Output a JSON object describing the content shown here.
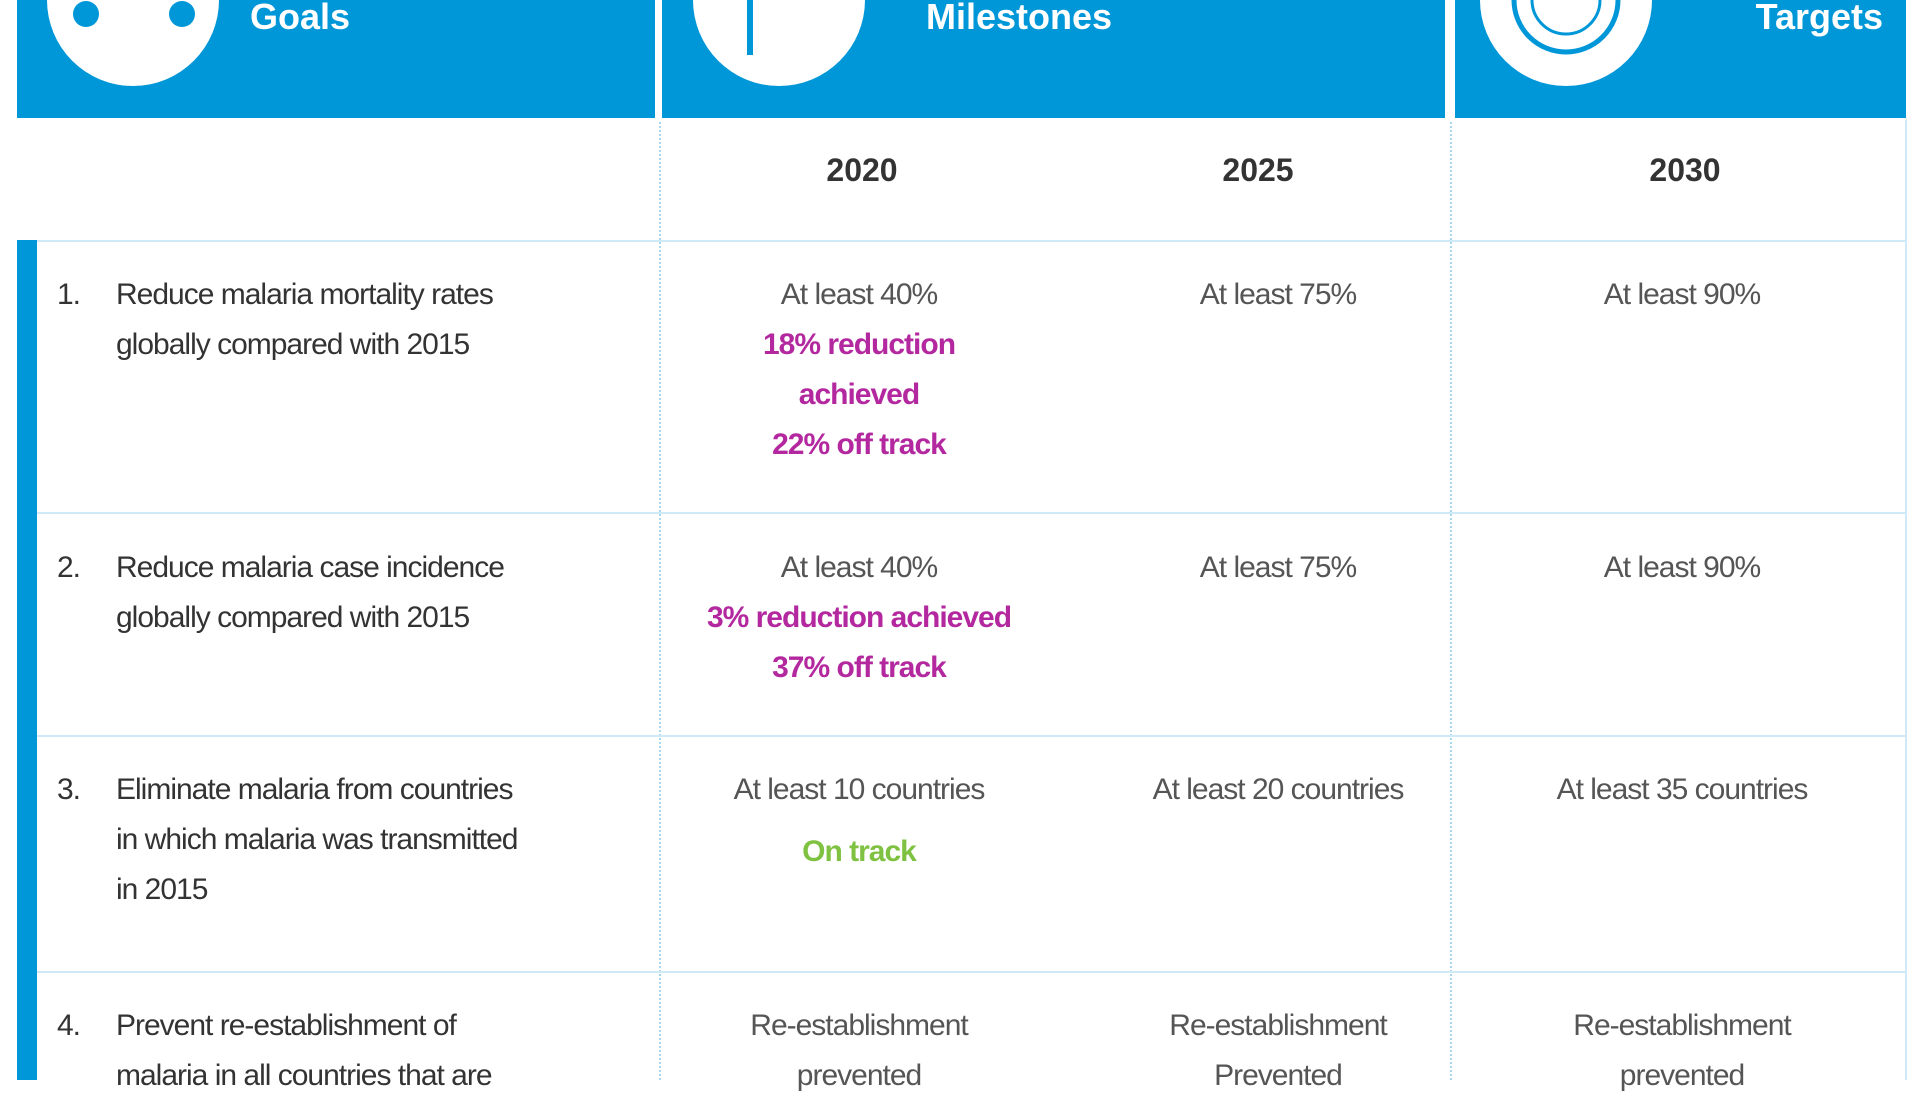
{
  "header": {
    "goals": "Goals",
    "milestones": "Milestones",
    "targets": "Targets"
  },
  "years": [
    "2020",
    "2025",
    "2030"
  ],
  "rows": [
    {
      "number": "1.",
      "goal": [
        "Reduce malaria mortality rates",
        "globally compared with 2015"
      ],
      "m2020": [
        "At least 40%"
      ],
      "status": [
        "18% reduction",
        "achieved",
        "22% off track"
      ],
      "status_color": "#b3289f",
      "m2025": [
        "At least 75%"
      ],
      "t2030": [
        "At least 90%"
      ]
    },
    {
      "number": "2.",
      "goal": [
        "Reduce malaria case incidence",
        "globally compared with 2015"
      ],
      "m2020": [
        "At least 40%"
      ],
      "status": [
        "3% reduction achieved",
        "37% off track"
      ],
      "status_color": "#b3289f",
      "m2025": [
        "At least 75%"
      ],
      "t2030": [
        "At least 90%"
      ]
    },
    {
      "number": "3.",
      "goal": [
        "Eliminate malaria from countries",
        "in which malaria was transmitted",
        "in 2015"
      ],
      "m2020": [
        "At least 10 countries"
      ],
      "status": [
        "On track"
      ],
      "status_color": "#7fc241",
      "m2025": [
        "At least 20 countries"
      ],
      "t2030": [
        "At least 35 countries"
      ]
    },
    {
      "number": "4.",
      "goal": [
        "Prevent re-establishment of",
        "malaria in all countries that are"
      ],
      "m2020": [
        "Re-establishment",
        "prevented"
      ],
      "status": [],
      "status_color": "#b3289f",
      "m2025": [
        "Re-establishment",
        "Prevented"
      ],
      "t2030": [
        "Re-establishment",
        "prevented"
      ]
    }
  ]
}
